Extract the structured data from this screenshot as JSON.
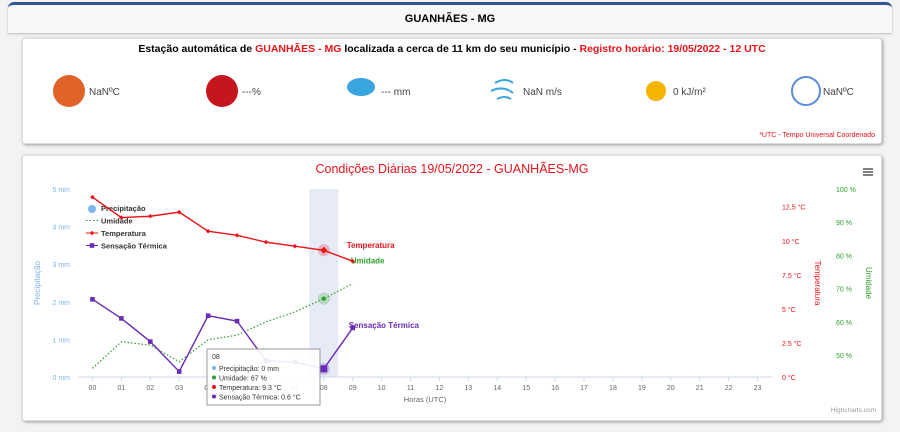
{
  "header": {
    "title": "GUANHÃES - MG"
  },
  "station": {
    "line": [
      "Estação automática de ",
      "GUANHÃES - MG",
      " localizada a cerca de 11 km do seu município - ",
      "Registro horário: 19/05/2022 - 12 UTC"
    ],
    "widgets": [
      "NaNºC",
      "---%",
      "--- mm",
      "NaN m/s",
      "0 kJ/m²",
      "NaNºC"
    ],
    "note": "*UTC - Tempo Universal Coordenado"
  },
  "chart_data": {
    "type": "combo",
    "title": "Condições Diárias 19/05/2022 - GUANHÃES-MG",
    "categories": [
      "00",
      "01",
      "02",
      "03",
      "04",
      "05",
      "06",
      "07",
      "08",
      "09",
      "10",
      "11",
      "12",
      "13",
      "14",
      "15",
      "16",
      "17",
      "18",
      "19",
      "20",
      "21",
      "22",
      "23"
    ],
    "x_label": "Horas (UTC)",
    "y_label": "Precipitação",
    "y2_label": "Temperatura",
    "y3_label": "Umidade",
    "ylim": [
      0,
      5
    ],
    "yticks": [
      {
        "value": 0,
        "label": "0 mm"
      },
      {
        "value": 1,
        "label": "1 mm"
      },
      {
        "value": 2,
        "label": "2 mm"
      },
      {
        "value": 3,
        "label": "3 mm"
      },
      {
        "value": 4,
        "label": "4 mm"
      },
      {
        "value": 5,
        "label": "5 mm"
      }
    ],
    "y2lim": [
      0,
      13.8
    ],
    "y2ticks": [
      {
        "value": 0,
        "label": "0 °C"
      },
      {
        "value": 2.5,
        "label": "2.5 °C"
      },
      {
        "value": 5,
        "label": "5 °C"
      },
      {
        "value": 7.5,
        "label": "7.5 °C"
      },
      {
        "value": 10,
        "label": "10 °C"
      },
      {
        "value": 12.5,
        "label": "12.5 °C"
      }
    ],
    "y3lim": [
      43.4,
      100
    ],
    "y3ticks": [
      {
        "value": 50,
        "label": "50 %"
      },
      {
        "value": 60,
        "label": "60 %"
      },
      {
        "value": 70,
        "label": "70 %"
      },
      {
        "value": 80,
        "label": "80 %"
      },
      {
        "value": 90,
        "label": "90 %"
      },
      {
        "value": 100,
        "label": "100 %"
      }
    ],
    "series": [
      {
        "name": "Precipitação",
        "color": "#7cb5ec",
        "type": "column",
        "axis": "y",
        "values": [
          0,
          0,
          0,
          0,
          0,
          0,
          0,
          0,
          0,
          0,
          null,
          null,
          null,
          null,
          null,
          null,
          null,
          null,
          null,
          null,
          null,
          null,
          null,
          null
        ]
      },
      {
        "name": "Umidade",
        "color": "#2ca02c",
        "type": "dotted",
        "axis": "y3",
        "values": [
          46,
          54,
          53,
          48,
          54.6,
          56,
          60,
          63,
          67,
          71.5,
          null,
          null,
          null,
          null,
          null,
          null,
          null,
          null,
          null,
          null,
          null,
          null,
          null,
          null
        ]
      },
      {
        "name": "Temperatura",
        "color": "#e8141a",
        "type": "diamond",
        "axis": "y2",
        "values": [
          13.2,
          11.7,
          11.8,
          12.1,
          10.7,
          10.4,
          9.9,
          9.6,
          9.3,
          8.5,
          null,
          null,
          null,
          null,
          null,
          null,
          null,
          null,
          null,
          null,
          null,
          null,
          null,
          null
        ]
      },
      {
        "name": "Sensação Térmica",
        "color": "#6a2bb5",
        "type": "square",
        "axis": "y2",
        "values": [
          5.7,
          4.3,
          2.6,
          0.4,
          4.5,
          4.1,
          1.2,
          1.1,
          0.6,
          3.6,
          null,
          null,
          null,
          null,
          null,
          null,
          null,
          null,
          null,
          null,
          null,
          null,
          null,
          null
        ]
      }
    ],
    "tooltip": {
      "title": "08",
      "lines": [
        "Precipitação: 0 mm",
        "Umidade: 67 %",
        "Temperatura: 9.3 °C",
        "Sensação Térmica: 0.6 °C"
      ]
    },
    "credits": "Highcharts.com"
  }
}
